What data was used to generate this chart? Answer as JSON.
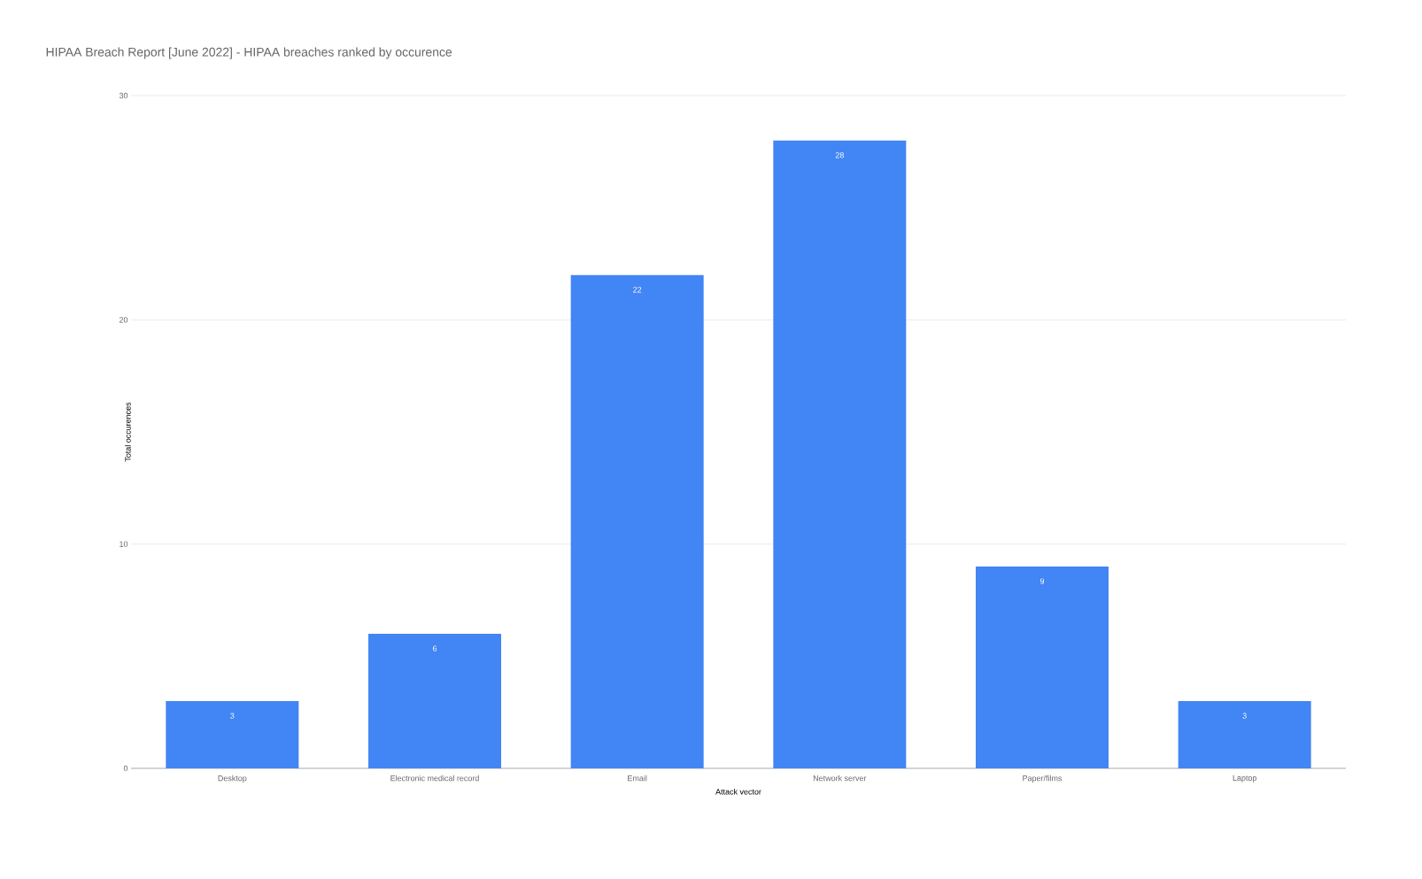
{
  "chart_data": {
    "type": "bar",
    "title": "HIPAA Breach Report [June 2022] - HIPAA breaches ranked by occurence",
    "xlabel": "Attack vector",
    "ylabel": "Total occurences",
    "categories": [
      "Desktop",
      "Electronic medical record",
      "Email",
      "Network server",
      "Paper/films",
      "Laptop"
    ],
    "values": [
      3,
      6,
      22,
      28,
      9,
      3
    ],
    "color": "#4285f4",
    "ylim": [
      0,
      30
    ],
    "yticks": [
      0,
      10,
      20,
      30
    ],
    "grid": "y",
    "data_labels": true
  }
}
